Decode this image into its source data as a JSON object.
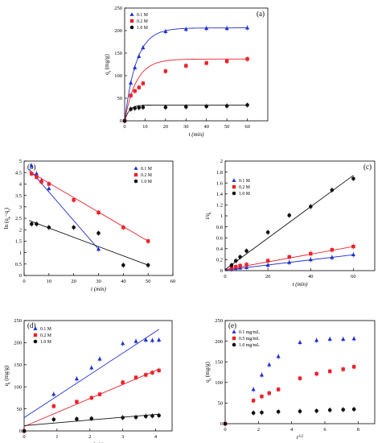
{
  "colors": {
    "blue": "#1f2fcc",
    "red": "#e8222a",
    "black": "#111111",
    "axis": "#000000"
  },
  "chart_data": [
    {
      "panel": "(a)",
      "type": "scatter",
      "xlabel": "t (min)",
      "ylabel": "q_t (mg/g)",
      "xlim": [
        0,
        70
      ],
      "ylim": [
        0,
        250
      ],
      "xticks": [
        0,
        10,
        20,
        30,
        40,
        50,
        60
      ],
      "yticks": [
        0,
        50,
        100,
        150,
        200,
        250
      ],
      "legend": "top-left",
      "series": [
        {
          "name": "0.1 M",
          "color": "blue",
          "marker": "triangle",
          "fit": "curve",
          "x": [
            0,
            3,
            5,
            7,
            9,
            20,
            30,
            40,
            50,
            60
          ],
          "y": [
            0,
            84,
            118,
            143,
            162,
            198,
            203,
            205,
            205,
            206
          ]
        },
        {
          "name": "0.2 M",
          "color": "red",
          "marker": "square",
          "fit": "curve",
          "x": [
            0,
            3,
            5,
            7,
            9,
            20,
            30,
            40,
            50,
            60
          ],
          "y": [
            0,
            56,
            66,
            74,
            83,
            110,
            122,
            128,
            132,
            137
          ]
        },
        {
          "name": "1.0 M",
          "color": "black",
          "marker": "circle",
          "fit": "curve",
          "x": [
            0,
            3,
            5,
            7,
            9,
            20,
            30,
            40,
            50,
            60
          ],
          "y": [
            0,
            26,
            28,
            29,
            30,
            30,
            31,
            32,
            33,
            35
          ]
        }
      ]
    },
    {
      "panel": "(b)",
      "type": "scatter",
      "xlabel": "t (min)",
      "ylabel": "ln (q_e−q_t)",
      "xlim": [
        0,
        60
      ],
      "ylim": [
        0,
        5
      ],
      "xticks": [
        0,
        10,
        20,
        30,
        40,
        50,
        60
      ],
      "yticks": [
        0,
        0.5,
        1,
        1.5,
        2,
        2.5,
        3,
        3.5,
        4,
        4.5,
        5
      ],
      "legend": "top-right",
      "series": [
        {
          "name": "0.1 M",
          "color": "blue",
          "marker": "triangle",
          "fit": "line",
          "x": [
            3,
            5,
            7,
            10,
            30
          ],
          "y": [
            4.8,
            4.45,
            4.15,
            3.8,
            1.15
          ],
          "line": [
            [
              2,
              4.65
            ],
            [
              30,
              1.15
            ]
          ]
        },
        {
          "name": "0.2 M",
          "color": "red",
          "marker": "square",
          "fit": "line",
          "x": [
            3,
            5,
            7,
            10,
            20,
            30,
            40,
            50
          ],
          "y": [
            4.45,
            4.3,
            4.1,
            4.0,
            3.3,
            2.75,
            2.1,
            1.5
          ],
          "line": [
            [
              2,
              4.55
            ],
            [
              50,
              1.5
            ]
          ]
        },
        {
          "name": "1.0 M",
          "color": "black",
          "marker": "circle",
          "fit": "line",
          "x": [
            3,
            5,
            10,
            20,
            30,
            40,
            50
          ],
          "y": [
            2.25,
            2.25,
            2.1,
            2.1,
            1.85,
            0.45,
            0.45
          ],
          "line": [
            [
              2,
              2.4
            ],
            [
              50,
              0.45
            ]
          ]
        }
      ]
    },
    {
      "panel": "(c)",
      "type": "scatter",
      "xlabel": "t (min)",
      "ylabel": "t/q_t",
      "xlim": [
        0,
        70
      ],
      "ylim": [
        0,
        2
      ],
      "xticks": [
        0,
        20,
        40,
        60
      ],
      "yticks": [
        0,
        0.2,
        0.4,
        0.6,
        0.8,
        1,
        1.2,
        1.4,
        1.6,
        1.8,
        2
      ],
      "legend": "top-left",
      "series": [
        {
          "name": "0.1 M",
          "color": "blue",
          "marker": "triangle",
          "fit": "line",
          "x": [
            3,
            5,
            7,
            10,
            20,
            30,
            40,
            50,
            60
          ],
          "y": [
            0.03,
            0.04,
            0.05,
            0.06,
            0.1,
            0.15,
            0.2,
            0.24,
            0.29
          ],
          "line": [
            [
              0,
              0.01
            ],
            [
              60,
              0.29
            ]
          ]
        },
        {
          "name": "0.2 M",
          "color": "red",
          "marker": "square",
          "fit": "line",
          "x": [
            3,
            5,
            7,
            10,
            20,
            30,
            40,
            50,
            60
          ],
          "y": [
            0.05,
            0.07,
            0.09,
            0.11,
            0.18,
            0.25,
            0.31,
            0.38,
            0.44
          ],
          "line": [
            [
              0,
              0.02
            ],
            [
              60,
              0.44
            ]
          ]
        },
        {
          "name": "1.0 M",
          "color": "black",
          "marker": "circle",
          "fit": "line",
          "x": [
            3,
            5,
            7,
            10,
            20,
            30,
            40,
            50,
            60
          ],
          "y": [
            0.1,
            0.18,
            0.25,
            0.36,
            0.7,
            1.01,
            1.17,
            1.47,
            1.68
          ],
          "line": [
            [
              0,
              0.02
            ],
            [
              60,
              1.74
            ]
          ]
        }
      ]
    },
    {
      "panel": "(d)",
      "type": "scatter",
      "xlabel": "ln(t)",
      "ylabel": "q_t (mg/g)",
      "xlim": [
        0,
        4.5
      ],
      "ylim": [
        0,
        250
      ],
      "xticks": [
        0,
        1,
        2,
        3,
        4
      ],
      "yticks": [
        0,
        50,
        100,
        150,
        200,
        250
      ],
      "legend": "top-left",
      "series": [
        {
          "name": "0.1 M",
          "color": "blue",
          "marker": "triangle",
          "fit": "line",
          "x": [
            0,
            0.9,
            1.6,
            2.05,
            2.3,
            3.0,
            3.4,
            3.7,
            3.9,
            4.1
          ],
          "y": [
            0,
            83,
            118,
            143,
            163,
            198,
            203,
            206,
            205,
            206
          ],
          "line": [
            [
              0,
              30
            ],
            [
              4.1,
              230
            ]
          ]
        },
        {
          "name": "0.2 M",
          "color": "red",
          "marker": "square",
          "fit": "line",
          "x": [
            0,
            0.9,
            1.6,
            2.05,
            2.3,
            3.0,
            3.4,
            3.7,
            3.9,
            4.1
          ],
          "y": [
            0,
            56,
            66,
            75,
            83,
            110,
            121,
            127,
            132,
            137
          ],
          "line": [
            [
              0,
              10
            ],
            [
              4.1,
              140
            ]
          ]
        },
        {
          "name": "1.0 M",
          "color": "black",
          "marker": "circle",
          "fit": "line",
          "x": [
            0,
            0.9,
            1.6,
            2.05,
            3.0,
            3.4,
            3.7,
            3.9,
            4.1
          ],
          "y": [
            0,
            26,
            27,
            28,
            30,
            31,
            33,
            34,
            35
          ],
          "line": [
            [
              0,
              12
            ],
            [
              4.1,
              38
            ]
          ]
        }
      ]
    },
    {
      "panel": "(e)",
      "type": "scatter",
      "xlabel": "t^1/2",
      "ylabel": "q_t (mg/g)",
      "xlim": [
        0,
        9
      ],
      "ylim": [
        0,
        250
      ],
      "xticks": [
        0,
        2,
        4,
        6,
        8
      ],
      "yticks": [
        0,
        50,
        100,
        150,
        200,
        250
      ],
      "legend": "top-left",
      "series": [
        {
          "name": "0.1 mg/mL",
          "color": "blue",
          "marker": "triangle",
          "fit": "none",
          "x": [
            0,
            1.7,
            2.2,
            2.65,
            3.2,
            4.5,
            5.5,
            6.3,
            7.1,
            7.75
          ],
          "y": [
            0,
            83,
            118,
            143,
            163,
            197,
            202,
            205,
            205,
            206
          ]
        },
        {
          "name": "0.5 mg/mL",
          "color": "red",
          "marker": "square",
          "fit": "none",
          "x": [
            0,
            1.7,
            2.2,
            2.65,
            3.2,
            4.5,
            5.5,
            6.3,
            7.1,
            7.75
          ],
          "y": [
            0,
            56,
            66,
            74,
            83,
            110,
            121,
            127,
            132,
            138
          ]
        },
        {
          "name": "1.0 mg/mL",
          "color": "black",
          "marker": "circle",
          "fit": "none",
          "x": [
            0,
            1.7,
            2.2,
            3.2,
            4.5,
            5.5,
            6.3,
            7.1,
            7.75
          ],
          "y": [
            0,
            26,
            27,
            29,
            30,
            31,
            33,
            34,
            35
          ]
        }
      ]
    }
  ]
}
